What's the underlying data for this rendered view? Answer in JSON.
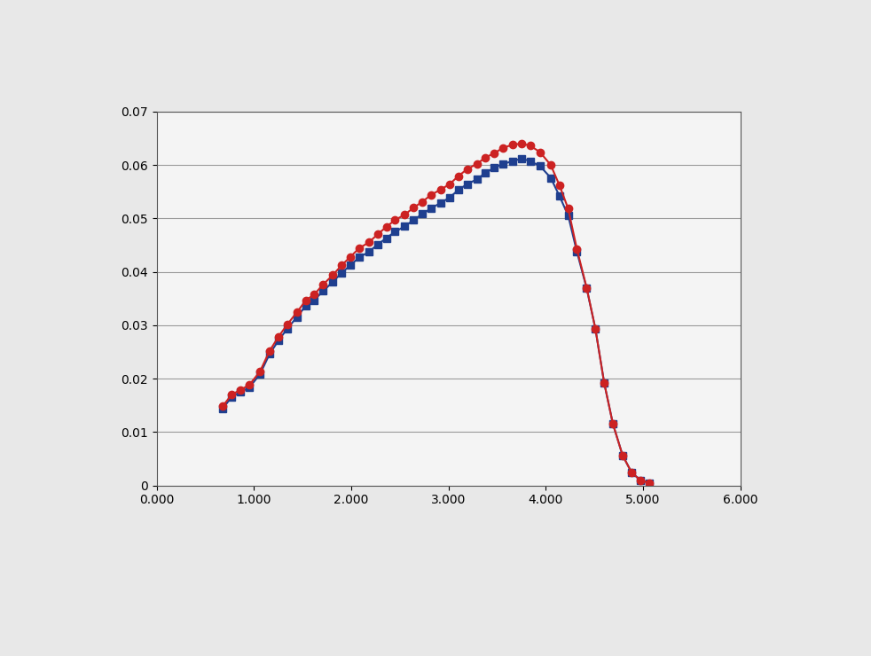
{
  "chart_data": {
    "type": "line",
    "x": [
      0.68,
      0.77,
      0.86,
      0.95,
      1.06,
      1.16,
      1.25,
      1.34,
      1.44,
      1.53,
      1.62,
      1.71,
      1.81,
      1.9,
      1.99,
      2.08,
      2.18,
      2.27,
      2.36,
      2.45,
      2.55,
      2.64,
      2.73,
      2.82,
      2.92,
      3.01,
      3.1,
      3.19,
      3.29,
      3.38,
      3.47,
      3.56,
      3.66,
      3.75,
      3.84,
      3.94,
      4.05,
      4.14,
      4.23,
      4.32,
      4.42,
      4.51,
      4.6,
      4.69,
      4.79,
      4.88,
      4.97,
      5.06
    ],
    "series": [
      {
        "color": "#1f3f8f",
        "marker": "square",
        "line_style": "solid",
        "values": [
          0.0144,
          0.0166,
          0.0175,
          0.0183,
          0.0208,
          0.0246,
          0.0271,
          0.0293,
          0.0315,
          0.0336,
          0.0347,
          0.0364,
          0.0381,
          0.0398,
          0.0412,
          0.0427,
          0.0437,
          0.0451,
          0.0463,
          0.0475,
          0.0485,
          0.0497,
          0.0508,
          0.0519,
          0.0529,
          0.0539,
          0.0553,
          0.0564,
          0.0573,
          0.0585,
          0.0595,
          0.0602,
          0.0607,
          0.0612,
          0.0607,
          0.0598,
          0.0576,
          0.0542,
          0.0505,
          0.0437,
          0.0369,
          0.0293,
          0.0192,
          0.0115,
          0.0056,
          0.0025,
          0.001,
          0.0005
        ]
      },
      {
        "color": "#cc2222",
        "marker": "circle",
        "line_style": "solid",
        "values": [
          0.0149,
          0.017,
          0.0179,
          0.0188,
          0.0213,
          0.0252,
          0.0278,
          0.0301,
          0.0324,
          0.0346,
          0.0358,
          0.0376,
          0.0394,
          0.0412,
          0.0428,
          0.0444,
          0.0455,
          0.047,
          0.0484,
          0.0497,
          0.0507,
          0.052,
          0.0531,
          0.0544,
          0.0554,
          0.0564,
          0.0579,
          0.0592,
          0.0602,
          0.0614,
          0.0622,
          0.0632,
          0.0638,
          0.064,
          0.0636,
          0.0624,
          0.06,
          0.0562,
          0.0518,
          0.0442,
          0.037,
          0.0293,
          0.0192,
          0.0115,
          0.0056,
          0.0025,
          0.001,
          0.0005
        ]
      }
    ],
    "xlim": [
      0,
      6
    ],
    "xticks": [
      {
        "value": 0,
        "label": "0.000"
      },
      {
        "value": 1,
        "label": "1.000"
      },
      {
        "value": 2,
        "label": "2.000"
      },
      {
        "value": 3,
        "label": "3.000"
      },
      {
        "value": 4,
        "label": "4.000"
      },
      {
        "value": 5,
        "label": "5.000"
      },
      {
        "value": 6,
        "label": "6.000"
      }
    ],
    "ylim": [
      0,
      0.07
    ],
    "yticks": [
      0,
      0.01,
      0.02,
      0.03,
      0.04,
      0.05,
      0.06,
      0.07
    ],
    "grid": true
  }
}
